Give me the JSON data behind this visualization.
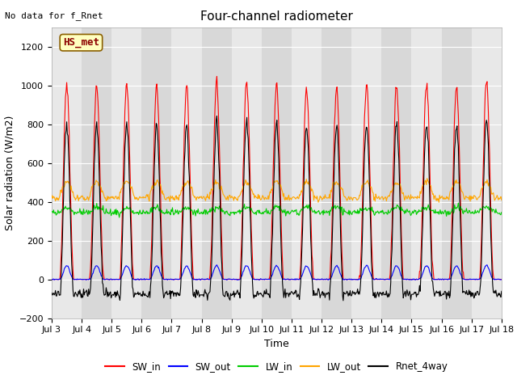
{
  "title": "Four-channel radiometer",
  "note": "No data for f_Rnet",
  "ylabel": "Solar radiation (W/m2)",
  "xlabel": "Time",
  "station_label": "HS_met",
  "xlim_days": [
    3,
    18
  ],
  "ylim": [
    -200,
    1300
  ],
  "yticks": [
    -200,
    0,
    200,
    400,
    600,
    800,
    1000,
    1200
  ],
  "xtick_days": [
    3,
    4,
    5,
    6,
    7,
    8,
    9,
    10,
    11,
    12,
    13,
    14,
    15,
    16,
    17,
    18
  ],
  "xtick_labels": [
    "Jul 3",
    "Jul 4",
    "Jul 5",
    "Jul 6",
    "Jul 7",
    "Jul 8",
    "Jul 9",
    "Jul 10",
    "Jul 11",
    "Jul 12",
    "Jul 13",
    "Jul 14",
    "Jul 15",
    "Jul 16",
    "Jul 17",
    "Jul 18"
  ],
  "series_colors": {
    "SW_in": "#ff0000",
    "SW_out": "#0000ff",
    "LW_in": "#00cc00",
    "LW_out": "#ffa500",
    "Rnet_4way": "#000000"
  },
  "linewidth": 0.8,
  "background_color": "#ffffff",
  "plot_bg_color": "#d8d8d8",
  "plot_bg_light": "#e8e8e8",
  "grid_color": "#ffffff",
  "peak_heights": [
    1000,
    1000,
    1005,
    985,
    1000,
    1010,
    1005,
    1000,
    975,
    975,
    1000,
    1000,
    1005,
    1000,
    1025
  ],
  "LW_in_base": 345,
  "LW_out_base": 430,
  "note_fontsize": 8,
  "title_fontsize": 11,
  "axis_fontsize": 9,
  "tick_fontsize": 8
}
